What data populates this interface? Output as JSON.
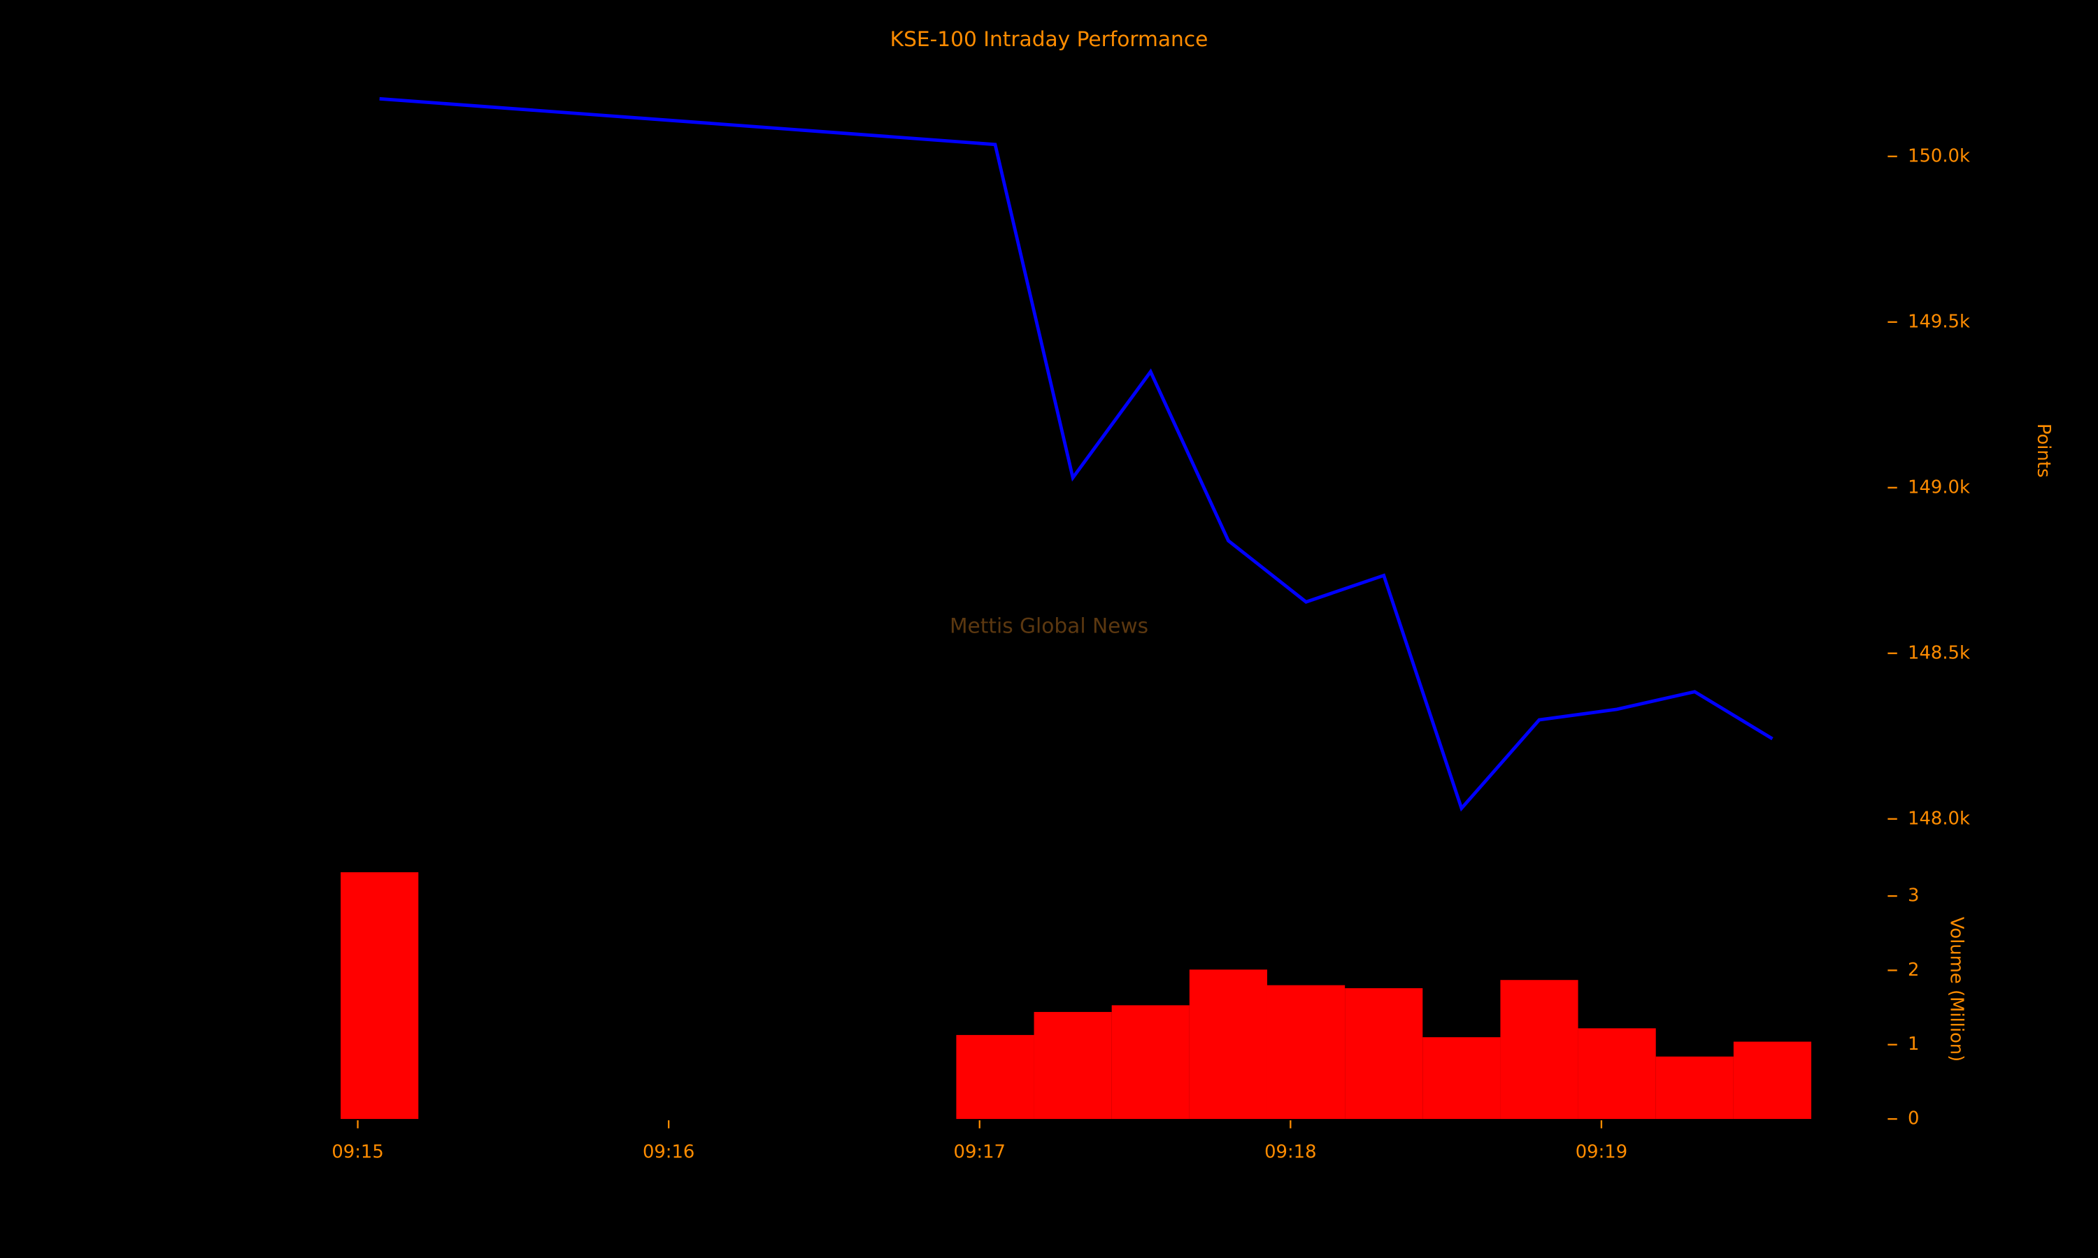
{
  "chart_data": [
    {
      "type": "line",
      "title": "KSE-100 Intraday Performance",
      "annotation": "Mettis Global News",
      "ylabel": "Points",
      "x": [
        555.07,
        557.05,
        557.3,
        557.55,
        557.8,
        558.05,
        558.3,
        558.55,
        558.8,
        559.05,
        559.3,
        559.55
      ],
      "values": [
        150174,
        150036,
        149030,
        149350,
        148840,
        148655,
        148735,
        148032,
        148299,
        148331,
        148384,
        148242
      ],
      "color": "#0000ff",
      "xlim": [
        554.93,
        559.68
      ],
      "ylim": [
        147970,
        150230
      ],
      "yticks": [
        {
          "value": 148000,
          "label": "148.0k"
        },
        {
          "value": 148500,
          "label": "148.5k"
        },
        {
          "value": 149000,
          "label": "149.0k"
        },
        {
          "value": 149500,
          "label": "149.5k"
        },
        {
          "value": 150000,
          "label": "150.0k"
        }
      ]
    },
    {
      "type": "bar",
      "ylabel": "Volume (Million)",
      "x": [
        555.07,
        557.05,
        557.3,
        557.55,
        557.8,
        558.05,
        558.3,
        558.55,
        558.8,
        559.05,
        559.3,
        559.55
      ],
      "values": [
        3.32,
        1.13,
        1.44,
        1.53,
        2.01,
        1.8,
        1.76,
        1.1,
        1.87,
        1.22,
        0.84,
        1.04
      ],
      "color": "#ff0000",
      "xlim": [
        554.93,
        559.68
      ],
      "ylim": [
        0,
        3.4
      ],
      "yticks": [
        0,
        1,
        2,
        3
      ],
      "xticks": [
        {
          "value": 555,
          "label": "09:15"
        },
        {
          "value": 556,
          "label": "09:16"
        },
        {
          "value": 557,
          "label": "09:17"
        },
        {
          "value": 558,
          "label": "09:18"
        },
        {
          "value": 559,
          "label": "09:19"
        }
      ]
    }
  ]
}
